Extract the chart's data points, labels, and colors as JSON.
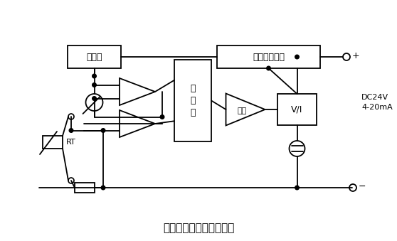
{
  "bg_color": "#ffffff",
  "title": "热电阻温度变送器原理图",
  "title_fontsize": 11,
  "label_jizhunyuan": "基准源",
  "label_fanjiebaohu": "反接限流保护",
  "label_xianxinghua": "线\n性\n化",
  "label_fangda": "放大",
  "label_VI": "V/I",
  "label_RT": "RT",
  "label_dc": "DC24V\n4-20mA",
  "box_color": "#000000",
  "line_color": "#000000"
}
